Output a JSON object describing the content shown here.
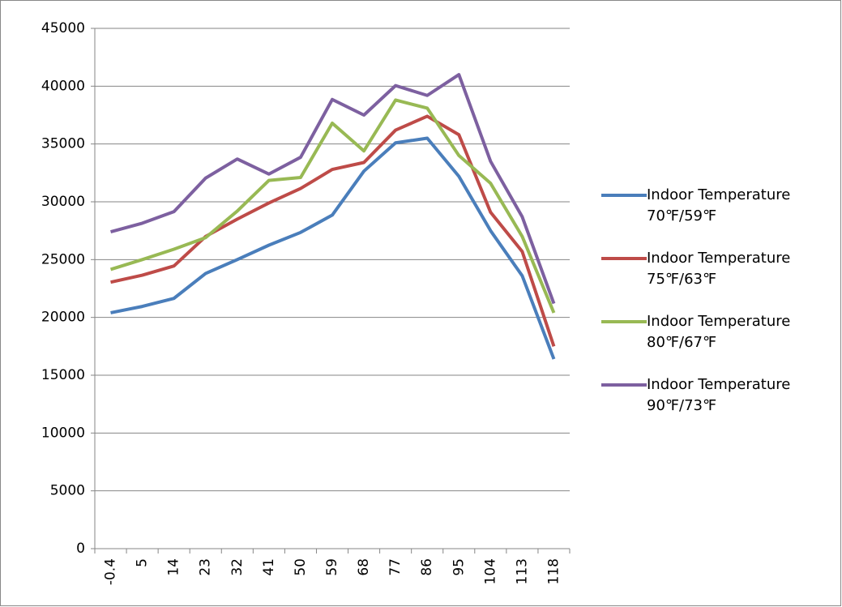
{
  "chart_data": {
    "type": "line",
    "categories": [
      "-0.4",
      "5",
      "14",
      "23",
      "32",
      "41",
      "50",
      "59",
      "68",
      "77",
      "86",
      "95",
      "104",
      "113",
      "118"
    ],
    "series": [
      {
        "name": "Indoor Temperature 70℉/59℉",
        "color": "#4a7ebb",
        "values": [
          20400,
          20950,
          21650,
          23800,
          25000,
          26250,
          27350,
          28850,
          32650,
          35100,
          35500,
          32200,
          27500,
          23600,
          16400
        ]
      },
      {
        "name": "Indoor Temperature 75℉/63℉",
        "color": "#be4b48",
        "values": [
          23050,
          23650,
          24450,
          27000,
          28500,
          29900,
          31150,
          32800,
          33400,
          36200,
          37400,
          35800,
          29100,
          25700,
          17500
        ]
      },
      {
        "name": "Indoor Temperature 80℉/67℉",
        "color": "#98b954",
        "values": [
          24150,
          25000,
          25900,
          26900,
          29200,
          31850,
          32100,
          36800,
          34400,
          38800,
          38100,
          34000,
          31600,
          27000,
          20400
        ]
      },
      {
        "name": "Indoor Temperature 90℉/73℉",
        "color": "#7d60a0",
        "values": [
          27400,
          28150,
          29150,
          32050,
          33700,
          32400,
          33850,
          38850,
          37500,
          40050,
          39200,
          41000,
          33500,
          28700,
          21200
        ]
      }
    ],
    "ylim": [
      0,
      45000
    ],
    "yticks": [
      0,
      5000,
      10000,
      15000,
      20000,
      25000,
      30000,
      35000,
      40000,
      45000
    ],
    "grid": true,
    "legend": "right"
  }
}
